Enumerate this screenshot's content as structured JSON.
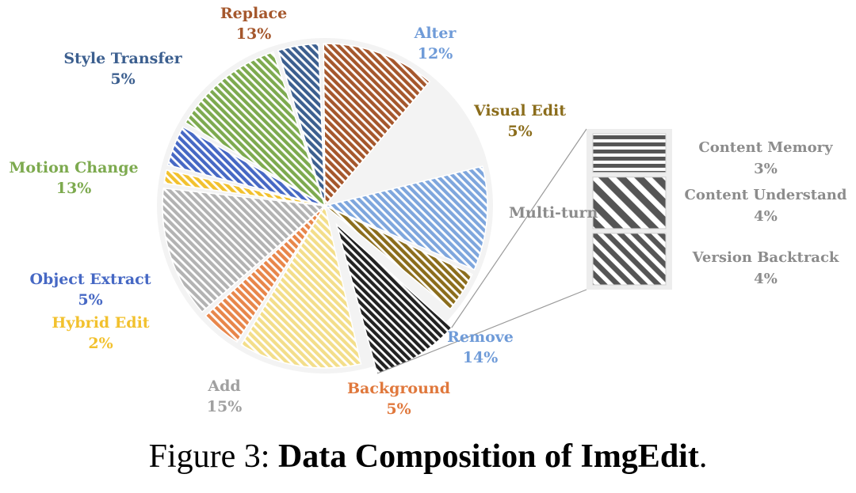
{
  "chart_data": {
    "type": "pie",
    "slices": [
      {
        "label": "Alter",
        "value": 12,
        "value_label": "12%",
        "color": "#7ea6dd"
      },
      {
        "label": "Visual Edit",
        "value": 5,
        "value_label": "5%",
        "color": "#8b6d1c"
      },
      {
        "label": "Multi-turn",
        "value": 11,
        "value_label": "",
        "color": "#222222",
        "exploded": true
      },
      {
        "label": "Remove",
        "value": 14,
        "value_label": "14%",
        "color": "#f3de8a"
      },
      {
        "label": "Background",
        "value": 5,
        "value_label": "5%",
        "color": "#e8864a"
      },
      {
        "label": "Add",
        "value": 15,
        "value_label": "15%",
        "color": "#b3b3b3"
      },
      {
        "label": "Hybrid Edit",
        "value": 2,
        "value_label": "2%",
        "color": "#f2c12e"
      },
      {
        "label": "Object Extract",
        "value": 5,
        "value_label": "5%",
        "color": "#4668c4"
      },
      {
        "label": "Motion Change",
        "value": 13,
        "value_label": "13%",
        "color": "#7daa4f"
      },
      {
        "label": "Style Transfer",
        "value": 5,
        "value_label": "5%",
        "color": "#3c5f8f"
      },
      {
        "label": "Replace",
        "value": 13,
        "value_label": "13%",
        "color": "#a5572c"
      }
    ],
    "label_colors": {
      "Alter": "#6f9bd8",
      "Visual Edit": "#8b6d1c",
      "Multi-turn": "#8c8c8c",
      "Remove": "#6f9bd8",
      "Background": "#e0783c",
      "Add": "#a0a0a0",
      "Hybrid Edit": "#f2c12e",
      "Object Extract": "#4668c4",
      "Motion Change": "#7daa4f",
      "Style Transfer": "#3c5f8f",
      "Replace": "#a5572c"
    },
    "breakdown": {
      "parent": "Multi-turn",
      "items": [
        {
          "label": "Content Memory",
          "value": 3,
          "value_label": "3%",
          "pattern": "horizontal"
        },
        {
          "label": "Content Understand",
          "value": 4,
          "value_label": "4%",
          "pattern": "diagonal-wide"
        },
        {
          "label": "Version Backtrack",
          "value": 4,
          "value_label": "4%",
          "pattern": "diagonal"
        }
      ]
    }
  },
  "caption": {
    "prefix": "Figure 3: ",
    "title": "Data Composition of ImgEdit",
    "suffix": "."
  }
}
